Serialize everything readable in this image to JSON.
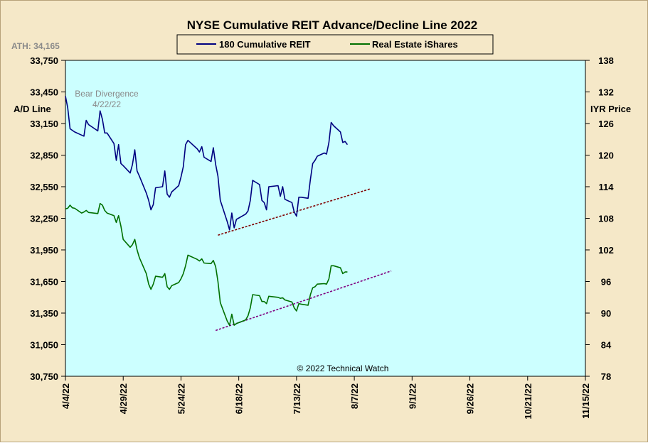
{
  "chart_data": {
    "type": "line",
    "title": "NYSE Cumulative  REIT Advance/Decline Line 2022",
    "ylabel_left": "A/D Line",
    "ylabel_right": "IYR Price",
    "ath_label": "ATH: 34,165",
    "annotation": {
      "text_line1": "Bear Divergence",
      "text_line2": "4/22/22"
    },
    "credit": "© 2022 Technical Watch",
    "grid": false,
    "legend_placement": "top-center",
    "left_axis": {
      "min": 30750,
      "max": 33750,
      "step": 300,
      "ticks": [
        "33,750",
        "33,450",
        "33,150",
        "32,850",
        "32,550",
        "32,250",
        "31,950",
        "31,650",
        "31,350",
        "31,050",
        "30,750"
      ]
    },
    "right_axis": {
      "min": 78,
      "max": 138,
      "step": 6,
      "ticks": [
        "138",
        "132",
        "126",
        "120",
        "114",
        "108",
        "102",
        "96",
        "90",
        "84",
        "78"
      ]
    },
    "x_axis": {
      "start_date": "4/4/22",
      "end_date": "11/15/22",
      "ticks": [
        "4/4/22",
        "4/29/22",
        "5/24/22",
        "6/18/22",
        "7/13/22",
        "8/7/22",
        "9/1/22",
        "9/26/22",
        "10/21/22",
        "11/15/22"
      ]
    },
    "series": [
      {
        "name": "180 Cumulative REIT",
        "axis": "left",
        "color": "#000080",
        "points": [
          [
            "4/4/22",
            33410
          ],
          [
            "4/5/22",
            33300
          ],
          [
            "4/6/22",
            33100
          ],
          [
            "4/8/22",
            33070
          ],
          [
            "4/11/22",
            33040
          ],
          [
            "4/12/22",
            33030
          ],
          [
            "4/13/22",
            33180
          ],
          [
            "4/14/22",
            33140
          ],
          [
            "4/18/22",
            33080
          ],
          [
            "4/19/22",
            33270
          ],
          [
            "4/20/22",
            33190
          ],
          [
            "4/21/22",
            33060
          ],
          [
            "4/22/22",
            33060
          ],
          [
            "4/25/22",
            32960
          ],
          [
            "4/26/22",
            32800
          ],
          [
            "4/27/22",
            32950
          ],
          [
            "4/28/22",
            32770
          ],
          [
            "4/29/22",
            32750
          ],
          [
            "5/2/22",
            32680
          ],
          [
            "5/3/22",
            32760
          ],
          [
            "5/4/22",
            32900
          ],
          [
            "5/5/22",
            32700
          ],
          [
            "5/6/22",
            32650
          ],
          [
            "5/9/22",
            32490
          ],
          [
            "5/10/22",
            32420
          ],
          [
            "5/11/22",
            32330
          ],
          [
            "5/12/22",
            32380
          ],
          [
            "5/13/22",
            32540
          ],
          [
            "5/16/22",
            32550
          ],
          [
            "5/17/22",
            32700
          ],
          [
            "5/18/22",
            32480
          ],
          [
            "5/19/22",
            32450
          ],
          [
            "5/20/22",
            32500
          ],
          [
            "5/23/22",
            32560
          ],
          [
            "5/24/22",
            32640
          ],
          [
            "5/25/22",
            32740
          ],
          [
            "5/26/22",
            32950
          ],
          [
            "5/27/22",
            32990
          ],
          [
            "5/31/22",
            32910
          ],
          [
            "6/1/22",
            32880
          ],
          [
            "6/2/22",
            32930
          ],
          [
            "6/3/22",
            32830
          ],
          [
            "6/6/22",
            32790
          ],
          [
            "6/7/22",
            32920
          ],
          [
            "6/8/22",
            32760
          ],
          [
            "6/9/22",
            32650
          ],
          [
            "6/10/22",
            32420
          ],
          [
            "6/13/22",
            32220
          ],
          [
            "6/14/22",
            32140
          ],
          [
            "6/15/22",
            32300
          ],
          [
            "6/16/22",
            32160
          ],
          [
            "6/17/22",
            32240
          ],
          [
            "6/21/22",
            32290
          ],
          [
            "6/22/22",
            32320
          ],
          [
            "6/23/22",
            32420
          ],
          [
            "6/24/22",
            32610
          ],
          [
            "6/27/22",
            32570
          ],
          [
            "6/28/22",
            32420
          ],
          [
            "6/29/22",
            32400
          ],
          [
            "6/30/22",
            32330
          ],
          [
            "7/1/22",
            32550
          ],
          [
            "7/5/22",
            32560
          ],
          [
            "7/6/22",
            32460
          ],
          [
            "7/7/22",
            32550
          ],
          [
            "7/8/22",
            32430
          ],
          [
            "7/11/22",
            32400
          ],
          [
            "7/12/22",
            32310
          ],
          [
            "7/13/22",
            32270
          ],
          [
            "7/14/22",
            32450
          ],
          [
            "7/15/22",
            32450
          ],
          [
            "7/18/22",
            32440
          ],
          [
            "7/19/22",
            32620
          ],
          [
            "7/20/22",
            32770
          ],
          [
            "7/21/22",
            32800
          ],
          [
            "7/22/22",
            32840
          ],
          [
            "7/25/22",
            32870
          ],
          [
            "7/26/22",
            32860
          ],
          [
            "7/27/22",
            32970
          ],
          [
            "7/28/22",
            33160
          ],
          [
            "7/29/22",
            33130
          ],
          [
            "8/1/22",
            33070
          ],
          [
            "8/2/22",
            32970
          ],
          [
            "8/3/22",
            32980
          ],
          [
            "8/4/22",
            32950
          ]
        ]
      },
      {
        "name": "Real Estate iShares",
        "axis": "right",
        "color": "#007000",
        "points": [
          [
            "4/4/22",
            109.8
          ],
          [
            "4/5/22",
            109.9
          ],
          [
            "4/6/22",
            110.5
          ],
          [
            "4/7/22",
            110.0
          ],
          [
            "4/8/22",
            109.9
          ],
          [
            "4/11/22",
            109.0
          ],
          [
            "4/12/22",
            109.2
          ],
          [
            "4/13/22",
            109.5
          ],
          [
            "4/14/22",
            109.1
          ],
          [
            "4/18/22",
            108.9
          ],
          [
            "4/19/22",
            110.8
          ],
          [
            "4/20/22",
            110.5
          ],
          [
            "4/21/22",
            109.5
          ],
          [
            "4/22/22",
            109.0
          ],
          [
            "4/25/22",
            108.5
          ],
          [
            "4/26/22",
            107.2
          ],
          [
            "4/27/22",
            108.5
          ],
          [
            "4/28/22",
            106.5
          ],
          [
            "4/29/22",
            104.0
          ],
          [
            "5/2/22",
            102.5
          ],
          [
            "5/3/22",
            103.0
          ],
          [
            "5/4/22",
            104.0
          ],
          [
            "5/5/22",
            102.0
          ],
          [
            "5/6/22",
            100.5
          ],
          [
            "5/9/22",
            97.5
          ],
          [
            "5/10/22",
            95.5
          ],
          [
            "5/11/22",
            94.5
          ],
          [
            "5/12/22",
            95.5
          ],
          [
            "5/13/22",
            97.0
          ],
          [
            "5/16/22",
            96.8
          ],
          [
            "5/17/22",
            97.5
          ],
          [
            "5/18/22",
            95.0
          ],
          [
            "5/19/22",
            94.5
          ],
          [
            "5/20/22",
            95.2
          ],
          [
            "5/23/22",
            95.8
          ],
          [
            "5/24/22",
            96.5
          ],
          [
            "5/25/22",
            97.5
          ],
          [
            "5/26/22",
            99.0
          ],
          [
            "5/27/22",
            101.0
          ],
          [
            "5/31/22",
            100.2
          ],
          [
            "6/1/22",
            99.9
          ],
          [
            "6/2/22",
            100.3
          ],
          [
            "6/3/22",
            99.5
          ],
          [
            "6/6/22",
            99.4
          ],
          [
            "6/7/22",
            100.0
          ],
          [
            "6/8/22",
            98.8
          ],
          [
            "6/9/22",
            96.0
          ],
          [
            "6/10/22",
            92.0
          ],
          [
            "6/13/22",
            88.5
          ],
          [
            "6/14/22",
            87.7
          ],
          [
            "6/15/22",
            89.8
          ],
          [
            "6/16/22",
            87.7
          ],
          [
            "6/17/22",
            88.0
          ],
          [
            "6/21/22",
            88.7
          ],
          [
            "6/22/22",
            89.5
          ],
          [
            "6/23/22",
            91.0
          ],
          [
            "6/24/22",
            93.5
          ],
          [
            "6/27/22",
            93.3
          ],
          [
            "6/28/22",
            92.2
          ],
          [
            "6/29/22",
            92.2
          ],
          [
            "6/30/22",
            91.8
          ],
          [
            "7/1/22",
            93.2
          ],
          [
            "7/5/22",
            93.0
          ],
          [
            "7/6/22",
            92.8
          ],
          [
            "7/7/22",
            92.9
          ],
          [
            "7/8/22",
            92.5
          ],
          [
            "7/11/22",
            92.1
          ],
          [
            "7/12/22",
            91.0
          ],
          [
            "7/13/22",
            90.4
          ],
          [
            "7/14/22",
            91.8
          ],
          [
            "7/15/22",
            91.7
          ],
          [
            "7/18/22",
            91.5
          ],
          [
            "7/19/22",
            93.5
          ],
          [
            "7/20/22",
            94.8
          ],
          [
            "7/21/22",
            95.0
          ],
          [
            "7/22/22",
            95.5
          ],
          [
            "7/25/22",
            95.6
          ],
          [
            "7/26/22",
            95.5
          ],
          [
            "7/27/22",
            96.5
          ],
          [
            "7/28/22",
            99.0
          ],
          [
            "7/29/22",
            99.0
          ],
          [
            "8/1/22",
            98.6
          ],
          [
            "8/2/22",
            97.5
          ],
          [
            "8/3/22",
            97.8
          ],
          [
            "8/4/22",
            97.8
          ]
        ]
      }
    ],
    "trendlines": [
      {
        "axis": "left",
        "color": "#800000",
        "start": [
          "6/9/22",
          32090
        ],
        "end": [
          "8/14/22",
          32530
        ]
      },
      {
        "axis": "right",
        "color": "#800080",
        "start": [
          "6/8/22",
          86.7
        ],
        "end": [
          "8/23/22",
          98.0
        ]
      }
    ]
  }
}
